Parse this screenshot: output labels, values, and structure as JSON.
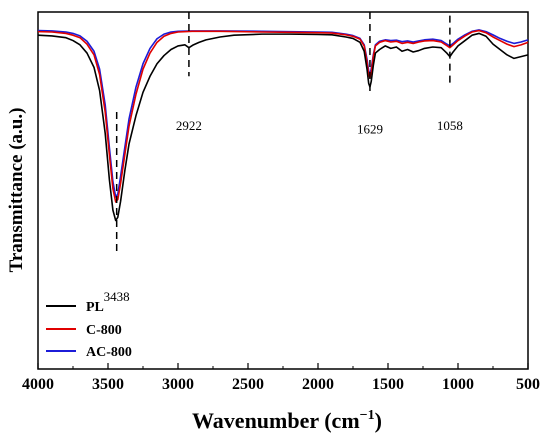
{
  "chart_data": {
    "type": "line",
    "xlabel": "Wavenumber (cm",
    "xlabel_sup": "−1",
    "xlabel_close": ")",
    "ylabel": "Transmittance (a.u.)",
    "xlim": [
      4000,
      500
    ],
    "x_reversed": true,
    "ylim": [
      0,
      100
    ],
    "y_ticks_shown": false,
    "x_ticks": [
      "4000",
      "3500",
      "3000",
      "2500",
      "2000",
      "1500",
      "1000",
      "500"
    ],
    "legend": {
      "placement": "bottom-left"
    },
    "annotations": [
      {
        "x": 3438,
        "label": "3438",
        "line_from": 72,
        "line_to": 33,
        "label_y": 19
      },
      {
        "x": 2922,
        "label": "2922",
        "line_from": 100,
        "line_to": 82,
        "label_y": 67
      },
      {
        "x": 1629,
        "label": "1629",
        "line_from": 100,
        "line_to": 77,
        "label_y": 66
      },
      {
        "x": 1058,
        "label": "1058",
        "line_from": 99,
        "line_to": 80,
        "label_y": 67
      }
    ],
    "series": [
      {
        "name": "PL",
        "color": "#000000",
        "points": [
          [
            4000,
            93.5
          ],
          [
            3900,
            93.3
          ],
          [
            3800,
            92.8
          ],
          [
            3750,
            92.0
          ],
          [
            3700,
            90.8
          ],
          [
            3650,
            88.5
          ],
          [
            3600,
            84.5
          ],
          [
            3560,
            78.0
          ],
          [
            3520,
            66.0
          ],
          [
            3490,
            53.0
          ],
          [
            3465,
            44.5
          ],
          [
            3445,
            41.6
          ],
          [
            3430,
            42.5
          ],
          [
            3410,
            47.0
          ],
          [
            3380,
            55.5
          ],
          [
            3350,
            63.0
          ],
          [
            3300,
            71.0
          ],
          [
            3250,
            77.5
          ],
          [
            3200,
            82.0
          ],
          [
            3150,
            85.5
          ],
          [
            3100,
            87.8
          ],
          [
            3050,
            89.5
          ],
          [
            3000,
            90.5
          ],
          [
            2950,
            90.8
          ],
          [
            2922,
            90.0
          ],
          [
            2890,
            90.8
          ],
          [
            2850,
            91.5
          ],
          [
            2800,
            92.2
          ],
          [
            2700,
            93.0
          ],
          [
            2600,
            93.5
          ],
          [
            2400,
            93.8
          ],
          [
            2200,
            93.8
          ],
          [
            2000,
            93.7
          ],
          [
            1900,
            93.6
          ],
          [
            1800,
            93.0
          ],
          [
            1750,
            92.6
          ],
          [
            1700,
            91.5
          ],
          [
            1670,
            89.0
          ],
          [
            1650,
            84.0
          ],
          [
            1638,
            80.0
          ],
          [
            1629,
            79.0
          ],
          [
            1620,
            80.5
          ],
          [
            1605,
            85.0
          ],
          [
            1590,
            88.5
          ],
          [
            1560,
            89.5
          ],
          [
            1520,
            90.5
          ],
          [
            1480,
            89.8
          ],
          [
            1440,
            90.2
          ],
          [
            1400,
            89.0
          ],
          [
            1360,
            89.5
          ],
          [
            1320,
            88.8
          ],
          [
            1280,
            89.2
          ],
          [
            1240,
            89.8
          ],
          [
            1180,
            90.2
          ],
          [
            1120,
            90.0
          ],
          [
            1080,
            88.5
          ],
          [
            1058,
            87.5
          ],
          [
            1035,
            88.8
          ],
          [
            1000,
            90.5
          ],
          [
            950,
            92.0
          ],
          [
            900,
            93.5
          ],
          [
            850,
            94.0
          ],
          [
            800,
            93.2
          ],
          [
            750,
            91.0
          ],
          [
            700,
            89.5
          ],
          [
            650,
            88.0
          ],
          [
            600,
            87.0
          ],
          [
            550,
            87.5
          ],
          [
            500,
            88.0
          ]
        ]
      },
      {
        "name": "C-800",
        "color": "#e00000",
        "points": [
          [
            4000,
            94.5
          ],
          [
            3900,
            94.4
          ],
          [
            3800,
            94.0
          ],
          [
            3750,
            93.5
          ],
          [
            3700,
            92.8
          ],
          [
            3650,
            91.0
          ],
          [
            3600,
            88.0
          ],
          [
            3560,
            82.5
          ],
          [
            3520,
            72.0
          ],
          [
            3490,
            60.0
          ],
          [
            3465,
            50.5
          ],
          [
            3445,
            46.8
          ],
          [
            3430,
            47.5
          ],
          [
            3410,
            52.0
          ],
          [
            3380,
            60.0
          ],
          [
            3350,
            68.0
          ],
          [
            3300,
            77.0
          ],
          [
            3250,
            84.0
          ],
          [
            3200,
            88.5
          ],
          [
            3150,
            91.5
          ],
          [
            3100,
            93.2
          ],
          [
            3050,
            94.0
          ],
          [
            3000,
            94.4
          ],
          [
            2900,
            94.6
          ],
          [
            2700,
            94.6
          ],
          [
            2400,
            94.4
          ],
          [
            2200,
            94.3
          ],
          [
            2000,
            94.2
          ],
          [
            1900,
            94.1
          ],
          [
            1800,
            93.6
          ],
          [
            1750,
            93.2
          ],
          [
            1700,
            92.4
          ],
          [
            1670,
            90.5
          ],
          [
            1650,
            86.0
          ],
          [
            1638,
            82.5
          ],
          [
            1629,
            81.5
          ],
          [
            1620,
            83.0
          ],
          [
            1605,
            87.5
          ],
          [
            1590,
            90.5
          ],
          [
            1560,
            91.5
          ],
          [
            1520,
            92.0
          ],
          [
            1480,
            91.6
          ],
          [
            1440,
            91.8
          ],
          [
            1400,
            91.2
          ],
          [
            1360,
            91.5
          ],
          [
            1320,
            91.2
          ],
          [
            1280,
            91.6
          ],
          [
            1240,
            91.9
          ],
          [
            1180,
            92.0
          ],
          [
            1120,
            91.6
          ],
          [
            1080,
            90.6
          ],
          [
            1058,
            90.0
          ],
          [
            1035,
            90.8
          ],
          [
            1000,
            92.0
          ],
          [
            950,
            93.3
          ],
          [
            900,
            94.4
          ],
          [
            850,
            94.8
          ],
          [
            800,
            94.2
          ],
          [
            750,
            93.0
          ],
          [
            700,
            92.0
          ],
          [
            650,
            91.0
          ],
          [
            600,
            90.3
          ],
          [
            550,
            90.8
          ],
          [
            500,
            91.5
          ]
        ]
      },
      {
        "name": "AC-800",
        "color": "#1c1cd8",
        "points": [
          [
            4000,
            94.8
          ],
          [
            3900,
            94.7
          ],
          [
            3800,
            94.4
          ],
          [
            3750,
            94.0
          ],
          [
            3700,
            93.3
          ],
          [
            3650,
            91.8
          ],
          [
            3600,
            89.0
          ],
          [
            3560,
            84.0
          ],
          [
            3520,
            74.0
          ],
          [
            3490,
            62.0
          ],
          [
            3465,
            52.5
          ],
          [
            3445,
            48.2
          ],
          [
            3430,
            49.0
          ],
          [
            3410,
            54.0
          ],
          [
            3380,
            62.0
          ],
          [
            3350,
            70.0
          ],
          [
            3300,
            79.0
          ],
          [
            3250,
            85.5
          ],
          [
            3200,
            89.8
          ],
          [
            3150,
            92.5
          ],
          [
            3100,
            93.8
          ],
          [
            3050,
            94.4
          ],
          [
            3000,
            94.6
          ],
          [
            2900,
            94.7
          ],
          [
            2700,
            94.7
          ],
          [
            2400,
            94.6
          ],
          [
            2200,
            94.5
          ],
          [
            2000,
            94.4
          ],
          [
            1900,
            94.3
          ],
          [
            1800,
            93.8
          ],
          [
            1750,
            93.4
          ],
          [
            1700,
            92.6
          ],
          [
            1670,
            90.8
          ],
          [
            1650,
            86.8
          ],
          [
            1638,
            83.5
          ],
          [
            1629,
            82.5
          ],
          [
            1620,
            84.0
          ],
          [
            1605,
            88.0
          ],
          [
            1590,
            90.8
          ],
          [
            1560,
            91.8
          ],
          [
            1520,
            92.2
          ],
          [
            1480,
            92.0
          ],
          [
            1440,
            92.1
          ],
          [
            1400,
            91.7
          ],
          [
            1360,
            91.9
          ],
          [
            1320,
            91.6
          ],
          [
            1280,
            91.9
          ],
          [
            1240,
            92.2
          ],
          [
            1180,
            92.4
          ],
          [
            1120,
            92.0
          ],
          [
            1080,
            91.0
          ],
          [
            1058,
            90.5
          ],
          [
            1035,
            91.2
          ],
          [
            1000,
            92.4
          ],
          [
            950,
            93.6
          ],
          [
            900,
            94.6
          ],
          [
            850,
            95.0
          ],
          [
            800,
            94.5
          ],
          [
            750,
            93.6
          ],
          [
            700,
            92.6
          ],
          [
            650,
            91.8
          ],
          [
            600,
            91.2
          ],
          [
            550,
            91.6
          ],
          [
            500,
            92.2
          ]
        ]
      }
    ]
  }
}
